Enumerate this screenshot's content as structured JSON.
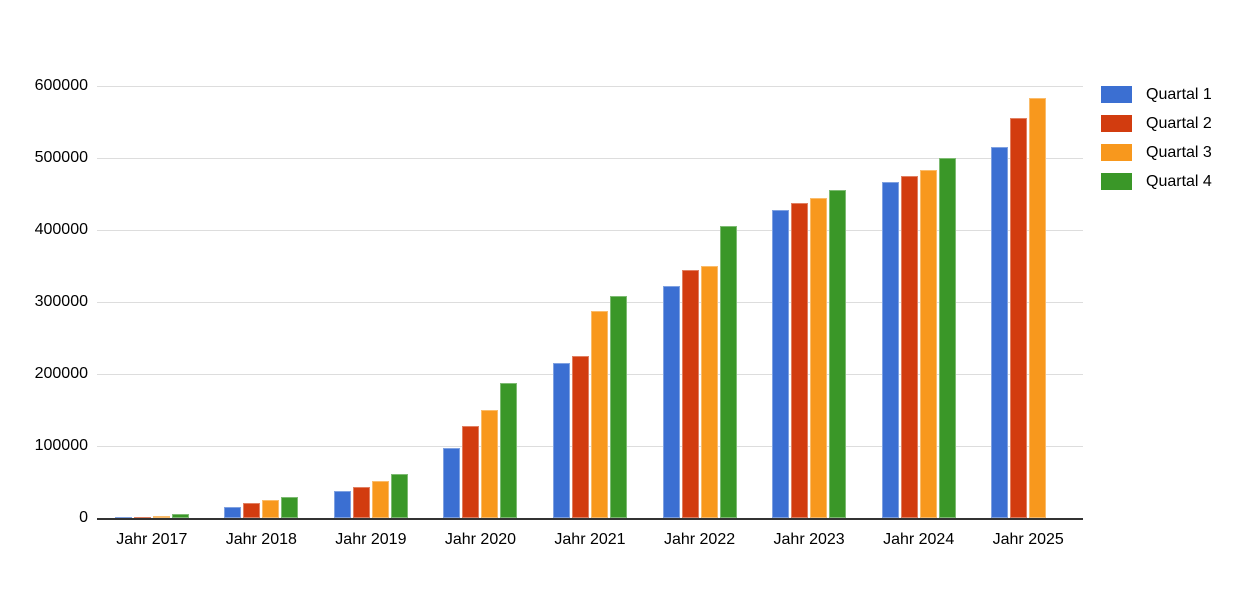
{
  "chart_data": {
    "type": "bar",
    "title": "",
    "xlabel": "",
    "ylabel": "",
    "categories": [
      "Jahr 2017",
      "Jahr 2018",
      "Jahr 2019",
      "Jahr 2020",
      "Jahr 2021",
      "Jahr 2022",
      "Jahr 2023",
      "Jahr 2024",
      "Jahr 2025"
    ],
    "series": [
      {
        "name": "Quartal 1",
        "color": "#3B6FD2",
        "values": [
          1200,
          15000,
          38000,
          97000,
          215000,
          322000,
          428000,
          466000,
          515000
        ]
      },
      {
        "name": "Quartal 2",
        "color": "#D23C0F",
        "values": [
          1800,
          21000,
          43000,
          128000,
          225000,
          345000,
          437000,
          475000,
          556000
        ]
      },
      {
        "name": "Quartal 3",
        "color": "#F8981D",
        "values": [
          2400,
          25000,
          51000,
          150000,
          287000,
          350000,
          444000,
          483000,
          583000
        ]
      },
      {
        "name": "Quartal 4",
        "color": "#3A9728",
        "values": [
          5000,
          29000,
          61000,
          187000,
          308000,
          405000,
          455000,
          500000,
          null
        ]
      }
    ],
    "ylim": [
      0,
      600000
    ],
    "ytick_step": 100000,
    "yticks": [
      "0",
      "100000",
      "200000",
      "300000",
      "400000",
      "500000",
      "600000"
    ],
    "grid": true,
    "legend_position": "right",
    "grid_color": "#dddddd",
    "axis_color": "#333333",
    "text_color": "#000000"
  }
}
